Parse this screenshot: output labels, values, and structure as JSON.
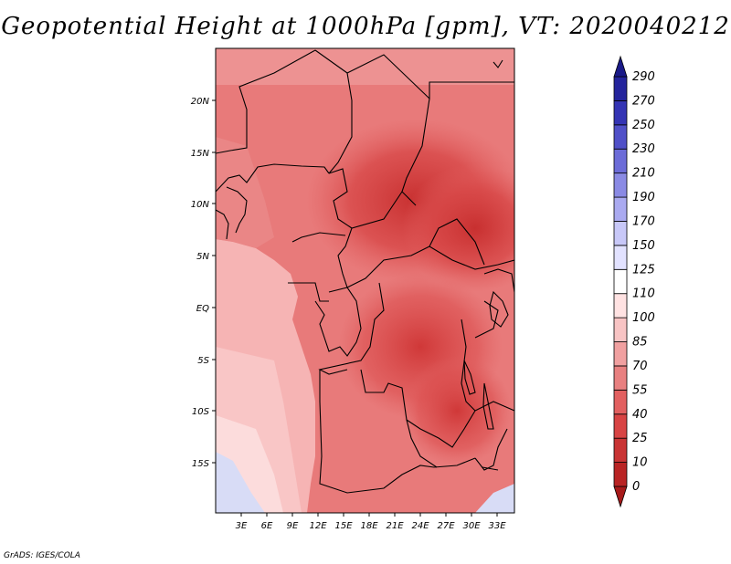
{
  "title": "Geopotential Height at 1000hPa [gpm], VT: 2020040212",
  "credit": "GrADS: IGES/COLA",
  "map": {
    "lat_labels": [
      "20N",
      "15N",
      "10N",
      "5N",
      "EQ",
      "5S",
      "10S",
      "15S"
    ],
    "lon_labels": [
      "3E",
      "6E",
      "9E",
      "12E",
      "15E",
      "18E",
      "21E",
      "24E",
      "27E",
      "30E",
      "33E"
    ],
    "colors": {
      "land_high": "#c83030",
      "coast_sea": "#fac0c0",
      "low_value": "#d8dcf6",
      "boundary": "#000000"
    }
  },
  "colorbar": {
    "labels": [
      "0",
      "10",
      "25",
      "40",
      "55",
      "70",
      "85",
      "100",
      "110",
      "125",
      "150",
      "170",
      "190",
      "210",
      "230",
      "250",
      "270",
      "290"
    ],
    "colors": [
      "#a71a1a",
      "#b92424",
      "#c93434",
      "#d84444",
      "#e26060",
      "#e88080",
      "#f0a0a0",
      "#f8c4c4",
      "#ffe2e2",
      "#ffffff",
      "#e2e2ff",
      "#c8c8f8",
      "#aaaaf0",
      "#8a8ae4",
      "#6c6cd8",
      "#5050c8",
      "#3434b4",
      "#24249c",
      "#1a1a88"
    ]
  }
}
